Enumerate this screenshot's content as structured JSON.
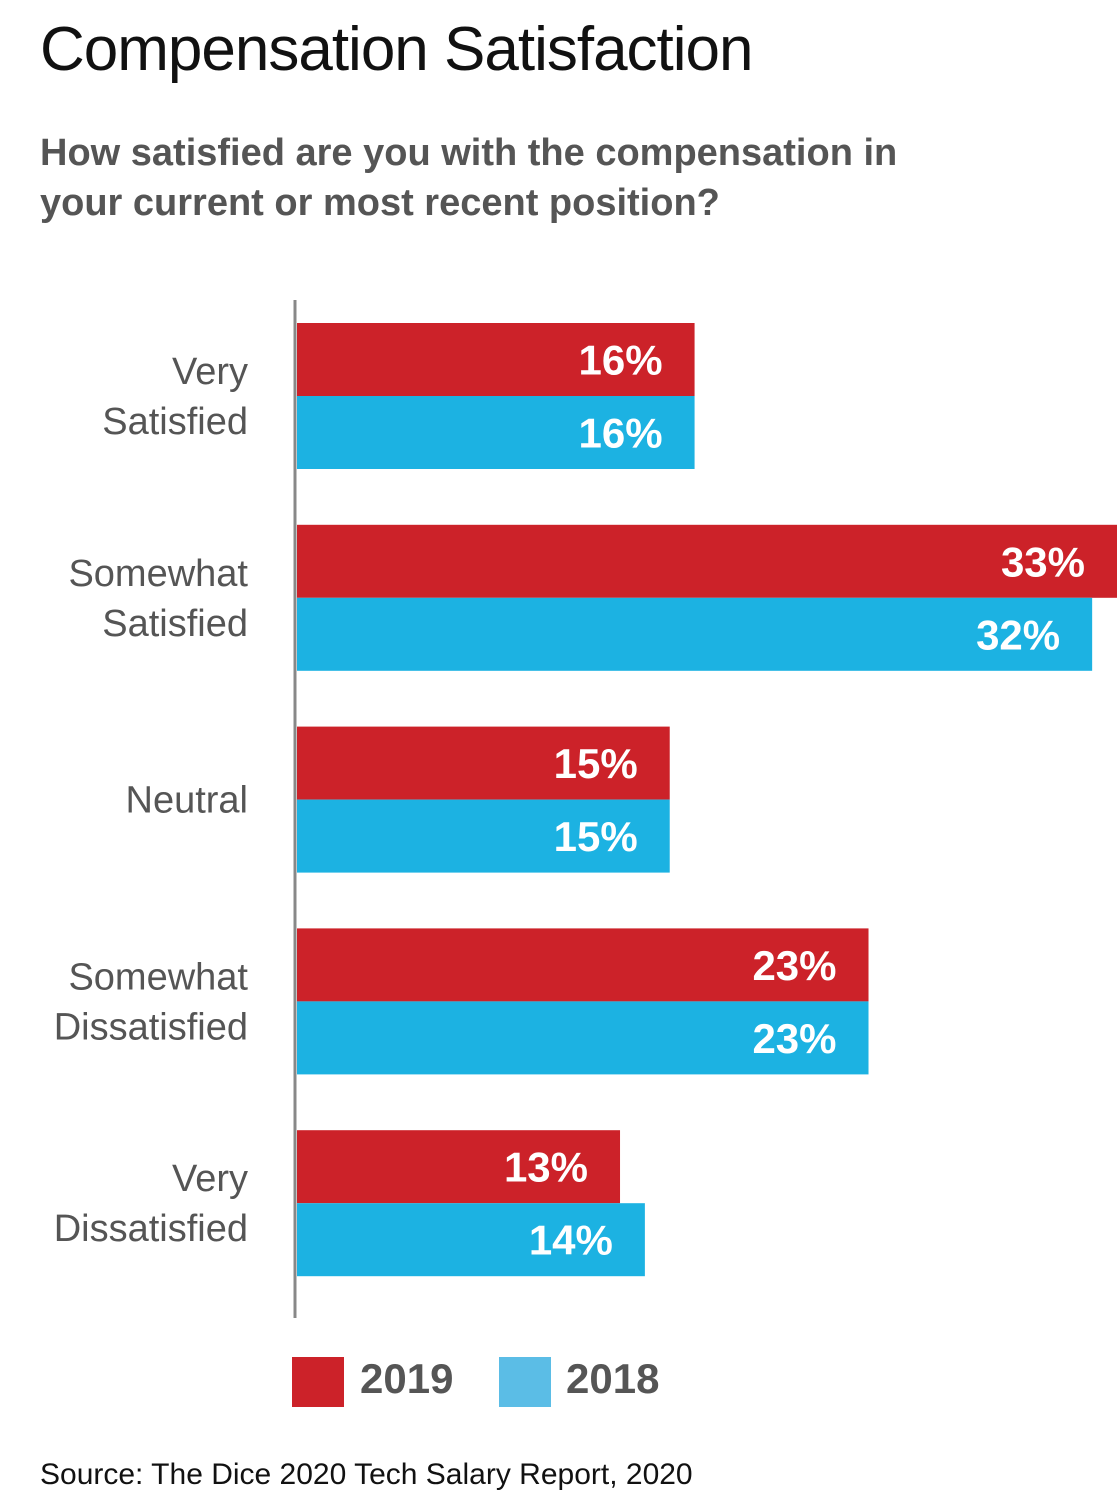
{
  "chart_data": {
    "type": "bar",
    "orientation": "horizontal",
    "title": "Compensation Satisfaction",
    "subtitle": "How satisfied are you with the compensation in your current or most recent position?",
    "categories": [
      [
        "Very",
        "Satisfied"
      ],
      [
        "Somewhat",
        "Satisfied"
      ],
      [
        "Neutral"
      ],
      [
        "Somewhat",
        "Dissatisfied"
      ],
      [
        "Very",
        "Dissatisfied"
      ]
    ],
    "series": [
      {
        "name": "2019",
        "color": "#cc2229",
        "values": [
          16,
          33,
          15,
          23,
          13
        ],
        "labels": [
          "16%",
          "33%",
          "15%",
          "23%",
          "13%"
        ]
      },
      {
        "name": "2018",
        "color": "#1cb2e2",
        "values": [
          16,
          32,
          15,
          23,
          14
        ],
        "labels": [
          "16%",
          "32%",
          "15%",
          "23%",
          "14%"
        ]
      }
    ],
    "xlim": [
      0,
      33
    ],
    "grid": false,
    "legend_position": "bottom"
  },
  "legend_colors": {
    "2019": "#cc2229",
    "2018": "#5bbde6"
  },
  "source": "Source: The Dice 2020 Tech Salary Report, 2020"
}
